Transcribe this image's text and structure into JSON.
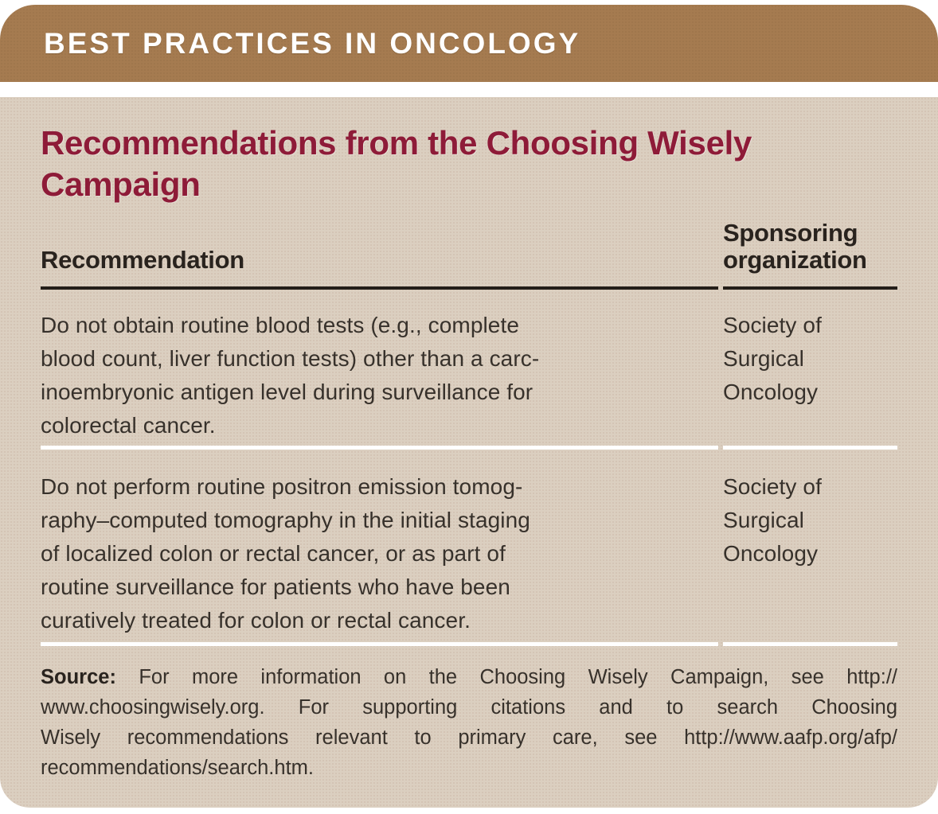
{
  "banner": {
    "title": "BEST PRACTICES IN ONCOLOGY"
  },
  "panel": {
    "title": "Recommendations from the Choosing Wisely Campaign",
    "title_lines": [
      "Recommendations from the Choosing Wisely",
      "Campaign"
    ],
    "table": {
      "header": {
        "col1": "Recommendation",
        "col2": "Sponsoring organization",
        "col2_lines": [
          "Sponsoring",
          "organization"
        ]
      },
      "rows": [
        {
          "recommendation": "Do not obtain routine blood tests (e.g., complete blood count, liver function tests) other than a carcinoembryonic antigen level during surveillance for colorectal cancer.",
          "recommendation_lines": [
            "Do not obtain routine blood tests (e.g., complete",
            "blood count, liver function tests) other than a carc-",
            "inoembryonic antigen level during surveillance for",
            "colorectal cancer."
          ],
          "organization": "Society of Surgical Oncology",
          "organization_lines": [
            "Society of",
            "Surgical",
            "Oncology"
          ]
        },
        {
          "recommendation": "Do not perform routine positron emission tomography–computed tomography in the initial staging of localized colon or rectal cancer, or as part of routine surveillance for patients who have been curatively treated for colon or rectal cancer.",
          "recommendation_lines": [
            "Do not perform routine positron emission tomog-",
            "raphy–computed tomography in the initial staging",
            "of localized colon or rectal cancer, or as part of",
            "routine surveillance for patients who have been",
            "curatively treated for colon or rectal cancer."
          ],
          "organization": "Society of Surgical Oncology",
          "organization_lines": [
            "Society of",
            "Surgical",
            "Oncology"
          ]
        }
      ]
    },
    "source": {
      "label": "Source:",
      "line1_rest": "For more information on the Choosing Wisely Campaign, see http://",
      "line2": "www.choosingwisely.org. For supporting citations and to search Choosing",
      "line3": "Wisely recommendations relevant to primary care, see http://www.aafp.org/afp/",
      "line4": "recommendations/search.htm.",
      "full_text": "Source: For more information on the Choosing Wisely Campaign, see http://www.choosingwisely.org. For supporting citations and to search Choosing Wisely recommendations relevant to primary care, see http://www.aafp.org/afp/recommendations/search.htm."
    }
  },
  "colors": {
    "banner_brown": "#a57b50",
    "panel_tan": "#dbcfc0",
    "title_maroon": "#8e1b38",
    "header_rule_dark": "#241e19",
    "row_divider_white": "#ffffff",
    "body_text": "#37312b"
  }
}
